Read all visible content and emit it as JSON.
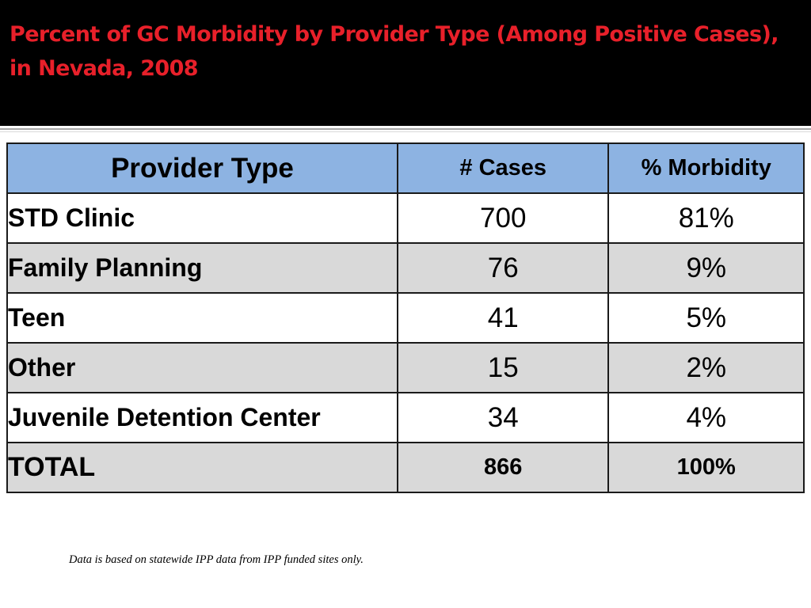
{
  "title": "Percent of GC Morbidity by Provider Type (Among Positive Cases), in Nevada, 2008",
  "colors": {
    "title_band": "#000000",
    "title_text": "#e8202a",
    "header_fill": "#8db3e2",
    "row_alt_fill": "#d9d9d9",
    "border": "#1a1a1a"
  },
  "table": {
    "headers": {
      "provider_type": "Provider Type",
      "cases": "# Cases",
      "morbidity": "% Morbidity"
    },
    "rows": [
      {
        "provider": "STD Clinic",
        "cases": "700",
        "morbidity": "81%"
      },
      {
        "provider": "Family Planning",
        "cases": "76",
        "morbidity": "9%"
      },
      {
        "provider": "Teen",
        "cases": "41",
        "morbidity": "5%"
      },
      {
        "provider": "Other",
        "cases": "15",
        "morbidity": "2%"
      },
      {
        "provider": "Juvenile Detention Center",
        "cases": "34",
        "morbidity": "4%"
      }
    ],
    "total": {
      "label": "TOTAL",
      "cases": "866",
      "morbidity": "100%"
    }
  },
  "footnote": "Data is based on statewide IPP data from IPP funded sites only."
}
